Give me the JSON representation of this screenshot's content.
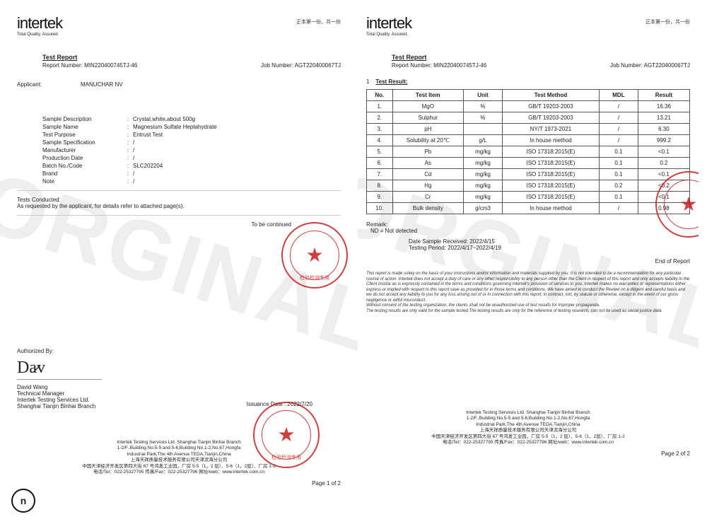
{
  "header": {
    "brand": "intertek",
    "tagline": "Total Quality. Assured.",
    "pageCopy": "正本第一份，共一份"
  },
  "report": {
    "titleLabel": "Test Report",
    "reportNumberLabel": "Report Number:",
    "reportNumber": "MIN220400745TJ-46",
    "jobNumberLabel": "Job Number:",
    "jobNumber": "AGT220400067TJ"
  },
  "page1": {
    "applicantLabel": "Applicant:",
    "applicant": "MANUCHAR NV",
    "fields": [
      {
        "label": "Sample Description",
        "value": "Crystal,white,about 500g"
      },
      {
        "label": "Sample Name",
        "value": "Magnesium Sulfate Heptahydrate"
      },
      {
        "label": "Test Purpose",
        "value": "Entrust Test"
      },
      {
        "label": "Sample Specification",
        "value": "/"
      },
      {
        "label": "Manufacturer",
        "value": "/"
      },
      {
        "label": "Production Date",
        "value": "/"
      },
      {
        "label": "Batch No./Code",
        "value": "SLC202204"
      },
      {
        "label": "Brand",
        "value": "/"
      },
      {
        "label": "Note",
        "value": "/"
      }
    ],
    "testsConductedLabel": "Tests Conducted:",
    "testsConductedText": "As requested by the applicant, for details refer to attached page(s).",
    "toBeContinued": "To be continued",
    "authorizedBy": "Authorized By:",
    "signerName": "David Wang",
    "signerTitle": "Technical  Manager",
    "signerOrg1": "Intertek Testing Services  Ltd.",
    "signerOrg2": "Shanghai Tianjin Binhai Branch",
    "issuanceDate": "Issuance Date : 2022/7/20",
    "pageNum": "Page 1 of 2"
  },
  "page2": {
    "sectionNo": "1",
    "sectionTitle": "Test Result:",
    "tableHeaders": [
      "No.",
      "Test Item",
      "Unit",
      "Test Method",
      "MDL",
      "Result"
    ],
    "rows": [
      [
        "1.",
        "MgO",
        "%",
        "GB/T 19203-2003",
        "/",
        "16.36"
      ],
      [
        "2.",
        "Sulphur",
        "%",
        "GB/T 19203-2003",
        "/",
        "13.21"
      ],
      [
        "3.",
        "pH",
        "",
        "NY/T 1973-2021",
        "/",
        "6.30"
      ],
      [
        "4.",
        "Solubility at 20℃",
        "g/L",
        "In house method",
        "/",
        "999.2"
      ],
      [
        "5.",
        "Pb",
        "mg/kg",
        "ISO 17318:2015(E)",
        "0.1",
        "<0.1"
      ],
      [
        "6.",
        "As",
        "mg/kg",
        "ISO 17318:2015(E)",
        "0.1",
        "0.2"
      ],
      [
        "7.",
        "Cd",
        "mg/kg",
        "ISO 17318:2015(E)",
        "0.1",
        "<0.1"
      ],
      [
        "8.",
        "Hg",
        "mg/kg",
        "ISO 17318:2015(E)",
        "0.2",
        "<0.2"
      ],
      [
        "9.",
        "Cr",
        "mg/kg",
        "ISO 17318:2015(E)",
        "0.1",
        "<0.1"
      ],
      [
        "10.",
        "Bulk density",
        "g/cm3",
        "In house method",
        "/",
        "0.98"
      ]
    ],
    "remarkLabel": "Remark:",
    "ndNote": "ND = Not detected",
    "sampleReceived": "Date Sample Received:  2022/4/15",
    "testingPeriod": "Testing Period:  2022/4/17~2022/4/19",
    "endOfReport": "End of Report",
    "disclaimer1": "This report is made solely on the basis of your instructions and/or information and materials supplied by you. It is not intended to be a recommendation for any particular course of action.  Intertek does not accept a duty of care or any other responsibility to any person other than the Client in respect of this report and only accepts liability to the Client insofar as is expressly contained in the terms and conditions governing Intertek's provision of services to you.  Intertek makes no warranties or representations either express or implied with respect to this report save as provided for in those terms and conditions. We have aimed to conduct the Review on a diligent and careful basis and we do not accept any liability to you for any loss arising out of or in connection with this report, in contract, tort, by statute or otherwise, except in the event of our gross negligence or wilful misconduct.",
    "disclaimer2": "Without consent of the testing organization, the clients shall not be unauthorized use of test results for improper propaganda.",
    "disclaimer3": "The testing results are only valid for the sample tested.The testing results are only for the reference of testing research, can not be used as social justice data.",
    "pageNum": "Page 2 of 2"
  },
  "footer": {
    "line1": "Intertek Testing Services  Ltd. Shanghai Tianjin Binhai Branch",
    "line2": "1-2/F.,Building No.5-5 and 5-6,Building No.1-2,No.67,Hongfa",
    "line3": "Industrial Park,The 4th Avenue TEDA,Tianjin,China",
    "line4": "上海天祥质量技术服务有限公司天津滨海分公司",
    "line5": "中国天津经济开发区第四大街 67 号鸿发工业园，厂房 5-5（1，2 层）、5-6（1，2层）、厂房 1-2",
    "line6": "电话/Tel：022-25327795   传真/Fax：022-25327796   网址/web：www.intertek.com.cn"
  },
  "stamp": {
    "text": "检验检测专用",
    "color": "#c81e1e"
  },
  "watermark": "ORGINAL"
}
